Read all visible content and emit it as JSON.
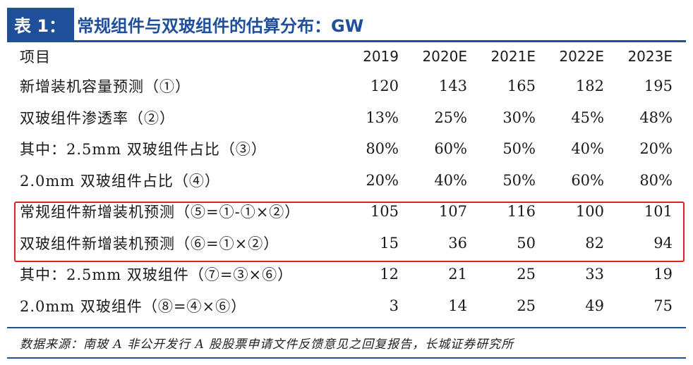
{
  "title": {
    "label": "表 1：",
    "text": "常规组件与双玻组件的估算分布：GW"
  },
  "table": {
    "columns": [
      "项目",
      "2019",
      "2020E",
      "2021E",
      "2022E",
      "2023E"
    ],
    "rows": [
      {
        "label": "新增装机容量预测（①）",
        "values": [
          "120",
          "143",
          "165",
          "182",
          "195"
        ]
      },
      {
        "label": "双玻组件渗透率（②）",
        "values": [
          "13%",
          "25%",
          "30%",
          "45%",
          "48%"
        ]
      },
      {
        "label": "其中：2.5mm 双玻组件占比（③）",
        "values": [
          "80%",
          "60%",
          "50%",
          "40%",
          "20%"
        ]
      },
      {
        "label": "2.0mm 双玻组件占比（④）",
        "values": [
          "20%",
          "40%",
          "50%",
          "60%",
          "80%"
        ]
      },
      {
        "label": "常规组件新增装机预测（⑤=①-①×②）",
        "values": [
          "105",
          "107",
          "116",
          "100",
          "101"
        ]
      },
      {
        "label": "双玻组件新增装机预测（⑥=①×②）",
        "values": [
          "15",
          "36",
          "50",
          "82",
          "94"
        ]
      },
      {
        "label": "其中：2.5mm 双玻组件（⑦=③×⑥）",
        "values": [
          "12",
          "21",
          "25",
          "33",
          "19"
        ]
      },
      {
        "label": "2.0mm 双玻组件（⑧=④×⑥）",
        "values": [
          "3",
          "14",
          "25",
          "49",
          "75"
        ]
      }
    ]
  },
  "source": "数据来源：南玻 A 非公开发行 A 股股票申请文件反馈意见之回复报告，长城证券研究所",
  "colors": {
    "accent": "#1f4f9a",
    "highlight_border": "#e0201f"
  }
}
